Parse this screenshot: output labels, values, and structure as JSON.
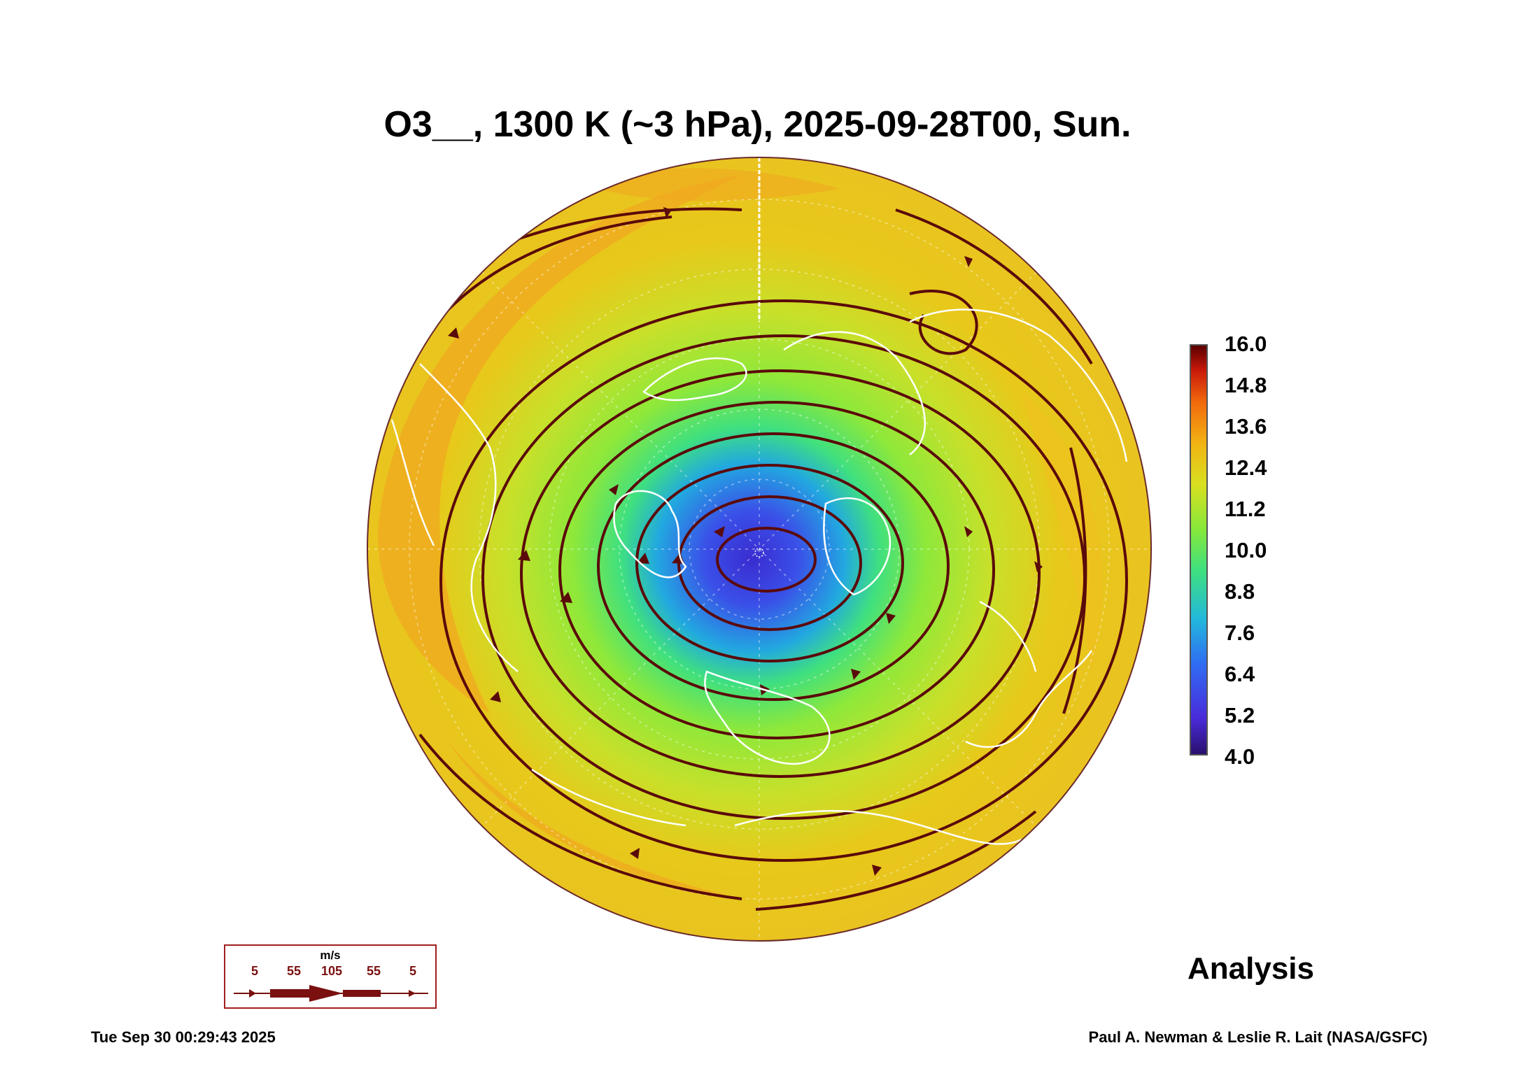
{
  "title": "O3__, 1300 K (~3 hPa), 2025-09-28T00, Sun.",
  "colorbar": {
    "labels": [
      "16.0",
      "14.8",
      "13.6",
      "12.4",
      "11.2",
      "10.0",
      "8.8",
      "7.6",
      "6.4",
      "5.2",
      "4.0"
    ],
    "min": 4.0,
    "max": 16.0,
    "colors": [
      "#2a0f6e",
      "#4a2cdb",
      "#2f6cf2",
      "#22b8dc",
      "#3fe07f",
      "#86e83a",
      "#d8e020",
      "#f2b413",
      "#f26a0c",
      "#c8180a",
      "#5a0000"
    ]
  },
  "wind_legend": {
    "unit": "m/s",
    "ticks": [
      "5",
      "55",
      "105",
      "55",
      "5"
    ]
  },
  "analysis_label": "Analysis",
  "timestamp": "Tue Sep 30 00:29:43 2025",
  "credit": "Paul A. Newman & Leslie R. Lait (NASA/GSFC)",
  "map": {
    "projection": "orthographic-north-polar",
    "field_colors": {
      "outer": "#e8c81a",
      "orange": "#f0a820",
      "mid": "#a8e030",
      "inner": "#3fe07f",
      "core": "#22b8dc",
      "vortex": "#3a3fe0"
    },
    "streamline_color": "#5a0a0a",
    "coastline_color": "#ffffff"
  }
}
